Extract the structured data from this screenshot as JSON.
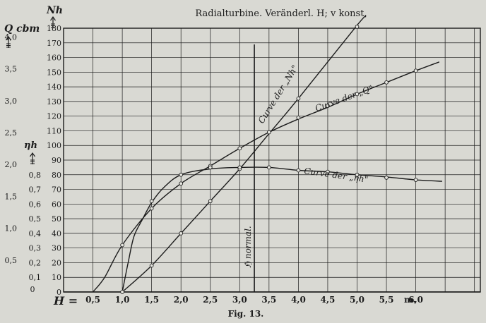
{
  "chart_data": {
    "type": "line",
    "title": "Radialturbine.  Veränderl. H; v konst.",
    "caption": "Fig. 13.",
    "xlabel": "H =",
    "x_unit": "m.",
    "x_ticks": [
      0.5,
      1.0,
      1.5,
      2.0,
      2.5,
      3.0,
      3.5,
      4.0,
      4.5,
      5.0,
      5.5,
      6.0
    ],
    "x_tick_labels": [
      "0,5",
      "1,0",
      "1,5",
      "2,0",
      "2,5",
      "3,0",
      "3,5",
      "4,0",
      "4,5",
      "5,0",
      "5,5",
      "6,0"
    ],
    "xlim": [
      0,
      7.1
    ],
    "ylim": [
      0,
      180
    ],
    "axes": {
      "nh": {
        "label": "Nh",
        "ticks": [
          0,
          10,
          20,
          30,
          40,
          50,
          60,
          70,
          80,
          90,
          100,
          110,
          120,
          130,
          140,
          150,
          160,
          170,
          180
        ],
        "tick_labels": [
          "0",
          "10",
          "20",
          "30",
          "40",
          "50",
          "60",
          "70",
          "80",
          "90",
          "100",
          "110",
          "120",
          "130",
          "140",
          "150",
          "160",
          "170",
          "180"
        ]
      },
      "eta": {
        "label": "ηh",
        "ticks": [
          0.1,
          0.2,
          0.3,
          0.4,
          0.5,
          0.6,
          0.7,
          0.8
        ],
        "tick_labels": [
          "0,1",
          "0,2",
          "0,3",
          "0,4",
          "0,5",
          "0,6",
          "0,7",
          "0,8"
        ]
      },
      "q": {
        "label": "Q cbm",
        "ticks": [
          0.5,
          1.0,
          1.5,
          2.0,
          2.5,
          3.0,
          3.5,
          4.0
        ],
        "tick_labels": [
          "0,5",
          "1,0",
          "1,5",
          "2,0",
          "2,5",
          "3,0",
          "3,5",
          "4,0"
        ]
      }
    },
    "series": [
      {
        "name": "Curve der „Nh\"",
        "points": [
          [
            1.0,
            0
          ],
          [
            1.5,
            18
          ],
          [
            2.0,
            40
          ],
          [
            2.5,
            62
          ],
          [
            3.0,
            84
          ],
          [
            3.5,
            108
          ],
          [
            4.0,
            132
          ],
          [
            5.0,
            182
          ],
          [
            5.15,
            188
          ]
        ],
        "markers": [
          [
            1.0,
            0
          ],
          [
            1.5,
            18
          ],
          [
            2.0,
            40
          ],
          [
            2.5,
            62
          ],
          [
            3.0,
            84
          ],
          [
            4.0,
            132
          ],
          [
            5.0,
            181
          ]
        ]
      },
      {
        "name": "Curve der „Q\"",
        "points": [
          [
            0.5,
            0
          ],
          [
            0.7,
            10
          ],
          [
            1.0,
            32
          ],
          [
            1.5,
            57
          ],
          [
            2.0,
            74
          ],
          [
            2.5,
            86
          ],
          [
            3.0,
            98
          ],
          [
            3.5,
            109
          ],
          [
            4.0,
            118
          ],
          [
            4.5,
            126
          ],
          [
            5.0,
            135
          ],
          [
            5.5,
            143
          ],
          [
            6.0,
            151
          ],
          [
            6.4,
            157
          ]
        ],
        "markers": [
          [
            1.0,
            32
          ],
          [
            1.5,
            57
          ],
          [
            2.0,
            74
          ],
          [
            2.5,
            86
          ],
          [
            3.0,
            98
          ],
          [
            3.5,
            109
          ],
          [
            4.0,
            119
          ],
          [
            4.5,
            127
          ],
          [
            5.0,
            135
          ],
          [
            5.5,
            143
          ],
          [
            6.0,
            151
          ]
        ]
      },
      {
        "name": "Curve der „ηh\"",
        "points": [
          [
            1.0,
            0
          ],
          [
            1.1,
            20
          ],
          [
            1.2,
            38
          ],
          [
            1.35,
            50
          ],
          [
            1.5,
            61
          ],
          [
            1.7,
            71
          ],
          [
            2.0,
            80
          ],
          [
            2.5,
            84
          ],
          [
            3.0,
            85
          ],
          [
            3.5,
            85
          ],
          [
            4.0,
            83
          ],
          [
            4.5,
            82
          ],
          [
            5.0,
            80
          ],
          [
            5.5,
            78.5
          ],
          [
            6.0,
            76.5
          ],
          [
            6.45,
            75.5
          ]
        ],
        "markers": [
          [
            1.5,
            62
          ],
          [
            2.0,
            80
          ],
          [
            2.5,
            85
          ],
          [
            3.0,
            85
          ],
          [
            3.5,
            85
          ],
          [
            4.0,
            83
          ],
          [
            4.5,
            82
          ],
          [
            5.0,
            80
          ],
          [
            5.5,
            78
          ],
          [
            6.0,
            76.5
          ]
        ]
      }
    ],
    "annotations": [
      {
        "text": "ℌ normal.",
        "x": 3.25
      }
    ],
    "grid": true
  }
}
